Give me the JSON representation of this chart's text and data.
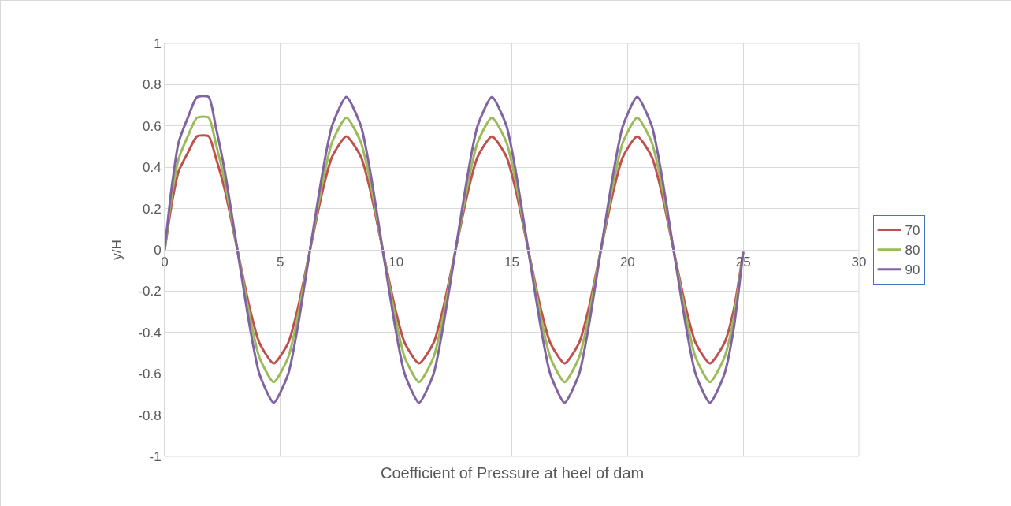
{
  "chart_data": {
    "type": "line",
    "xlabel": "Coefficient of Pressure at heel of dam",
    "ylabel": "y/H",
    "x": [
      0,
      0.3,
      0.6,
      1,
      1.4,
      1.9,
      2.2,
      2.6,
      3.14,
      3.69,
      4.09,
      4.71,
      5.34,
      5.74,
      6.28,
      6.83,
      7.23,
      7.85,
      8.48,
      8.88,
      9.42,
      9.97,
      10.37,
      10.99,
      11.62,
      12.02,
      12.57,
      13.12,
      13.52,
      14.14,
      14.77,
      15.17,
      15.71,
      16.26,
      16.66,
      17.28,
      17.91,
      18.31,
      18.85,
      19.4,
      19.8,
      20.42,
      21.05,
      21.45,
      21.99,
      22.54,
      22.94,
      23.56,
      24.19,
      24.59,
      25
    ],
    "series": [
      {
        "name": "70",
        "color": "#c0504d",
        "values": [
          0,
          0.22,
          0.38,
          0.47,
          0.55,
          0.55,
          0.45,
          0.29,
          0,
          -0.29,
          -0.45,
          -0.55,
          -0.45,
          -0.29,
          0,
          0.29,
          0.45,
          0.55,
          0.45,
          0.29,
          0,
          -0.29,
          -0.45,
          -0.55,
          -0.45,
          -0.29,
          0,
          0.29,
          0.45,
          0.55,
          0.45,
          0.29,
          0,
          -0.29,
          -0.45,
          -0.55,
          -0.45,
          -0.29,
          0,
          0.29,
          0.45,
          0.55,
          0.45,
          0.29,
          0,
          -0.29,
          -0.45,
          -0.55,
          -0.45,
          -0.29,
          -0.01
        ]
      },
      {
        "name": "80",
        "color": "#9bbb59",
        "values": [
          0,
          0.26,
          0.44,
          0.55,
          0.64,
          0.64,
          0.52,
          0.33,
          0,
          -0.33,
          -0.52,
          -0.64,
          -0.52,
          -0.33,
          0,
          0.33,
          0.52,
          0.64,
          0.52,
          0.33,
          0,
          -0.33,
          -0.52,
          -0.64,
          -0.52,
          -0.33,
          0,
          0.33,
          0.52,
          0.64,
          0.52,
          0.33,
          0,
          -0.33,
          -0.52,
          -0.64,
          -0.52,
          -0.33,
          0,
          0.33,
          0.52,
          0.64,
          0.52,
          0.33,
          0,
          -0.33,
          -0.52,
          -0.64,
          -0.52,
          -0.33,
          -0.01
        ]
      },
      {
        "name": "90",
        "color": "#8064a2",
        "values": [
          0,
          0.3,
          0.52,
          0.64,
          0.74,
          0.74,
          0.6,
          0.38,
          0,
          -0.38,
          -0.6,
          -0.74,
          -0.6,
          -0.38,
          0,
          0.38,
          0.6,
          0.74,
          0.6,
          0.38,
          0,
          -0.38,
          -0.6,
          -0.74,
          -0.6,
          -0.38,
          0,
          0.38,
          0.6,
          0.74,
          0.6,
          0.38,
          0,
          -0.38,
          -0.6,
          -0.74,
          -0.6,
          -0.38,
          0,
          0.38,
          0.6,
          0.74,
          0.6,
          0.38,
          0,
          -0.38,
          -0.6,
          -0.74,
          -0.6,
          -0.38,
          -0.01
        ]
      }
    ],
    "xlim": [
      0,
      30
    ],
    "xticks": [
      0,
      5,
      10,
      15,
      20,
      25,
      30
    ],
    "ylim": [
      -1,
      1
    ],
    "yticks": [
      -1,
      -0.8,
      -0.6,
      -0.4,
      -0.2,
      0,
      0.2,
      0.4,
      0.6,
      0.8,
      1
    ],
    "grid": true,
    "legend": "right",
    "marker": "none",
    "line_style": "solid"
  }
}
